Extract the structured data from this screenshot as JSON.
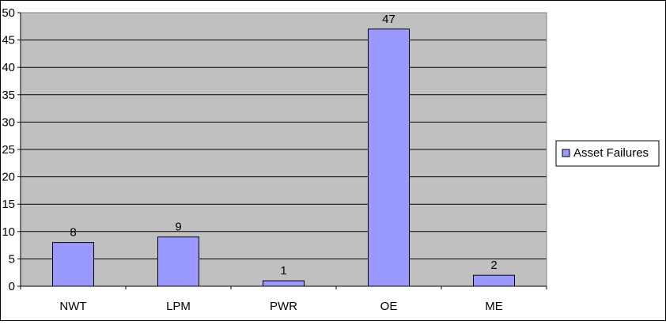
{
  "chart_data": {
    "type": "bar",
    "categories": [
      "NWT",
      "LPM",
      "PWR",
      "OE",
      "ME"
    ],
    "series": [
      {
        "name": "Asset Failures",
        "values": [
          8,
          9,
          1,
          47,
          2
        ]
      }
    ],
    "data_labels": [
      "8",
      "9",
      "1",
      "47",
      "2"
    ],
    "ylim": [
      0,
      50
    ],
    "yticks": [
      0,
      5,
      10,
      15,
      20,
      25,
      30,
      35,
      40,
      45,
      50
    ],
    "grid": true,
    "legend_position": "right",
    "colors": {
      "bar_fill": "#9999ff",
      "bar_stroke": "#000000",
      "plot_background": "#c0c0c0",
      "gridline": "#000000"
    }
  }
}
